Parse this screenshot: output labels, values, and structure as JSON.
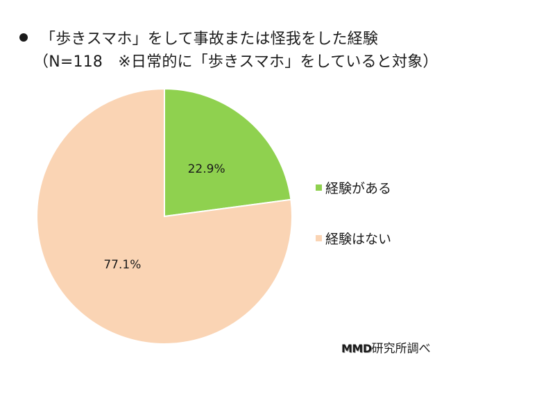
{
  "chart_data": {
    "type": "pie",
    "title": "「歩きスマホ」をして事故または怪我をした経験",
    "subtitle": "（N=118　※日常的に「歩きスマホ」をしていると対象）",
    "slices": [
      {
        "label": "経験がある",
        "value": 22.9,
        "value_label": "22.9%",
        "color": "#8fd14f"
      },
      {
        "label": "経験はない",
        "value": 77.1,
        "value_label": "77.1%",
        "color": "#fad4b4"
      }
    ],
    "start": "12 o'clock",
    "direction": "clockwise",
    "legend_position": "right"
  },
  "source": {
    "brand": "MMD",
    "suffix": "研究所調べ"
  }
}
